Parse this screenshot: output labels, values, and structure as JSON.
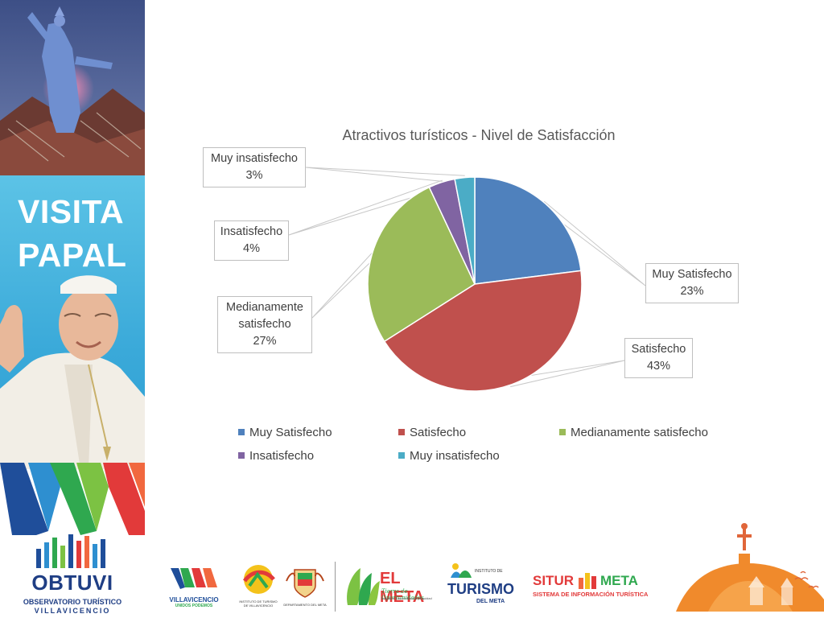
{
  "sidebar": {
    "banner_lines": [
      "VISITA",
      "PAPAL"
    ],
    "org_name": "OBTUVI",
    "org_subtitle_1": "OBSERVATORIO TURÍSTICO",
    "org_subtitle_2": "VILLAVICENCIO"
  },
  "chart_data": {
    "type": "pie",
    "title": "Atractivos turísticos - Nivel de Satisfacción",
    "legend_position": "bottom",
    "categories": [
      "Muy Satisfecho",
      "Satisfecho",
      "Medianamente satisfecho",
      "Insatisfecho",
      "Muy insatisfecho"
    ],
    "values": [
      23,
      43,
      27,
      4,
      3
    ],
    "unit": "%",
    "data_labels": [
      {
        "name": "Muy Satisfecho",
        "value": "23%"
      },
      {
        "name": "Satisfecho",
        "value": "43%"
      },
      {
        "name": "Medianamente satisfecho",
        "value": "27%"
      },
      {
        "name": "Insatisfecho",
        "value": "4%"
      },
      {
        "name": "Muy insatisfecho",
        "value": "3%"
      }
    ],
    "colors": [
      "#4f81bd",
      "#c0504d",
      "#9bbb59",
      "#8064a2",
      "#4bacc6"
    ]
  },
  "logos": {
    "villavicencio": "VILLAVICENCIO",
    "villavicencio_sub": "UNIDOS PODEMOS",
    "instituto_villavicencio": "INSTITUTO DE TURISMO DE VILLAVICENCIO",
    "departamento": "DEPARTAMENTO DEL META",
    "el_meta": "EL META",
    "el_meta_slogan": "Tierra de Oportunidades",
    "el_meta_sub": "Inclusión, Reconciliación y Equidad",
    "instituto_label": "INSTITUTO DE",
    "turismo": "TURISMO",
    "turismo_sub": "DEL META",
    "situr": "SITUR",
    "situr_meta": "META",
    "situr_sub": "SISTEMA DE INFORMACIÓN TURÍSTICA"
  }
}
